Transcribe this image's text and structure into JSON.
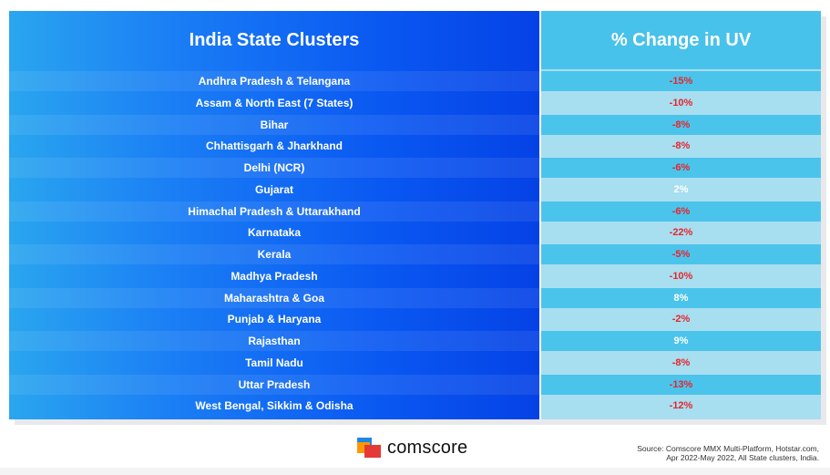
{
  "chart_data": {
    "type": "table",
    "title": "",
    "columns": [
      "India State Clusters",
      "% Change in UV"
    ],
    "rows": [
      {
        "state": "Andhra Pradesh & Telangana",
        "value": "-15%",
        "change": -15
      },
      {
        "state": "Assam & North East (7 States)",
        "value": "-10%",
        "change": -10
      },
      {
        "state": "Bihar",
        "value": "-8%",
        "change": -8
      },
      {
        "state": "Chhattisgarh & Jharkhand",
        "value": "-8%",
        "change": -8
      },
      {
        "state": "Delhi (NCR)",
        "value": "-6%",
        "change": -6
      },
      {
        "state": "Gujarat",
        "value": "2%",
        "change": 2
      },
      {
        "state": "Himachal Pradesh & Uttarakhand",
        "value": "-6%",
        "change": -6
      },
      {
        "state": "Karnataka",
        "value": "-22%",
        "change": -22
      },
      {
        "state": "Kerala",
        "value": "-5%",
        "change": -5
      },
      {
        "state": "Madhya Pradesh",
        "value": "-10%",
        "change": -10
      },
      {
        "state": "Maharashtra & Goa",
        "value": "8%",
        "change": 8
      },
      {
        "state": "Punjab & Haryana",
        "value": "-2%",
        "change": -2
      },
      {
        "state": "Rajasthan",
        "value": "9%",
        "change": 9
      },
      {
        "state": "Tamil Nadu",
        "value": "-8%",
        "change": -8
      },
      {
        "state": "Uttar Pradesh",
        "value": "-13%",
        "change": -13
      },
      {
        "state": "West Bengal, Sikkim & Odisha",
        "value": "-12%",
        "change": -12
      }
    ]
  },
  "colors": {
    "negative": "#e8252b",
    "positive": "#ffffff",
    "row_dark": "#4bc4ec",
    "row_light": "#a7def0",
    "header_right": "#47c2eb"
  },
  "footer": {
    "brand": "comscore",
    "source_line1": "Source: Comscore MMX Multi-Platform, Hotstar.com,",
    "source_line2": "Apr 2022-May 2022, All State clusters, India."
  }
}
